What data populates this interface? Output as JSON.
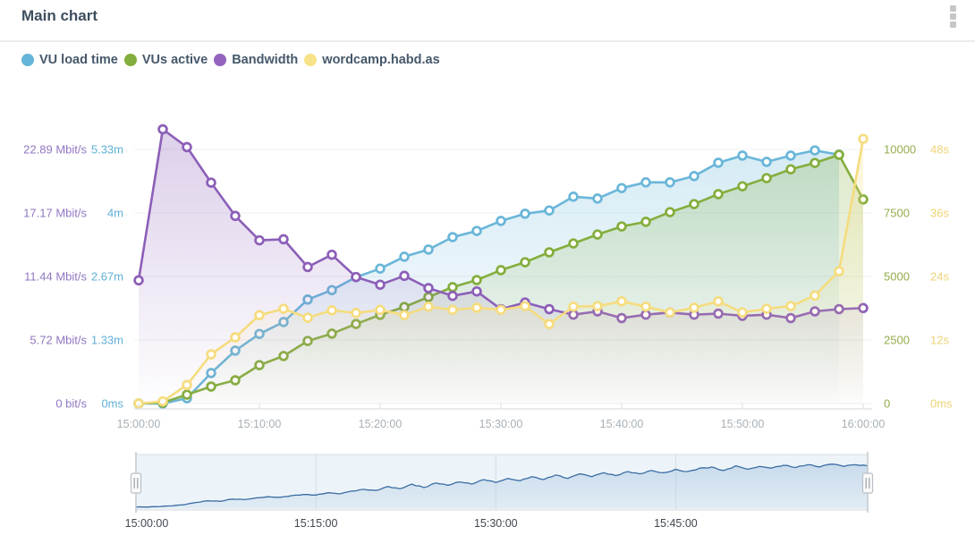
{
  "header": {
    "title": "Main chart"
  },
  "legend": [
    {
      "label": "VU load time",
      "color": "#66b5d8"
    },
    {
      "label": "VUs active",
      "color": "#84ae3d"
    },
    {
      "label": "Bandwidth",
      "color": "#9264bd"
    },
    {
      "label": "wordcamp.habd.as",
      "color": "#f8e289"
    }
  ],
  "chart_data": {
    "type": "line",
    "title": "Main chart",
    "x_ticks": [
      "15:00:00",
      "15:10:00",
      "15:20:00",
      "15:30:00",
      "15:40:00",
      "15:50:00",
      "16:00:00"
    ],
    "axes": {
      "bandwidth": {
        "labels": [
          "22.89 Mbit/s",
          "17.17 Mbit/s",
          "11.44 Mbit/s",
          "5.72 Mbit/s",
          "0 bit/s"
        ],
        "color": "#9177c2",
        "max": 22.89,
        "unit": "Mbit/s"
      },
      "vu_load_time": {
        "labels": [
          "5.33m",
          "4m",
          "2.67m",
          "1.33m",
          "0ms"
        ],
        "color": "#5fb0d6",
        "max": 5.33,
        "unit": "minutes"
      },
      "vus_active": {
        "labels": [
          "10000",
          "7500",
          "5000",
          "2500",
          "0"
        ],
        "color": "#93ad4c",
        "max": 10000,
        "unit": "VUs"
      },
      "response_time": {
        "labels": [
          "48s",
          "36s",
          "24s",
          "12s",
          "0ms"
        ],
        "color": "#eed477",
        "max": 48,
        "unit": "seconds"
      }
    },
    "series": [
      {
        "name": "VU load time",
        "axis": "vu_load_time",
        "color": "#6ab6d9",
        "fill": true,
        "x": [
          0,
          2,
          4,
          6,
          8,
          10,
          12,
          14,
          16,
          18,
          20,
          22,
          24,
          26,
          28,
          30,
          32,
          34,
          36,
          38,
          40,
          42,
          44,
          46,
          48,
          50,
          52,
          54,
          56,
          58
        ],
        "values": [
          0,
          0,
          0.11,
          0.64,
          1.11,
          1.46,
          1.71,
          2.18,
          2.38,
          2.65,
          2.83,
          3.08,
          3.23,
          3.49,
          3.62,
          3.83,
          3.98,
          4.05,
          4.34,
          4.3,
          4.52,
          4.64,
          4.64,
          4.77,
          5.05,
          5.2,
          5.07,
          5.2,
          5.31,
          5.22
        ]
      },
      {
        "name": "VUs active",
        "axis": "vus_active",
        "color": "#84ae3d",
        "fill": true,
        "x": [
          0,
          2,
          4,
          6,
          8,
          10,
          12,
          14,
          16,
          18,
          20,
          22,
          24,
          26,
          28,
          30,
          32,
          34,
          36,
          38,
          40,
          42,
          44,
          46,
          48,
          50,
          52,
          54,
          56,
          58,
          60
        ],
        "values": [
          0,
          35,
          350,
          670,
          915,
          1510,
          1870,
          2460,
          2750,
          3130,
          3490,
          3800,
          4190,
          4580,
          4860,
          5250,
          5560,
          5950,
          6300,
          6650,
          6970,
          7150,
          7530,
          7850,
          8240,
          8550,
          8870,
          9220,
          9470,
          9790,
          8030
        ]
      },
      {
        "name": "Bandwidth",
        "axis": "bandwidth",
        "color": "#8c5fb8",
        "fill": true,
        "x": [
          0,
          2,
          4,
          6,
          8,
          10,
          12,
          14,
          16,
          18,
          20,
          22,
          24,
          26,
          28,
          30,
          32,
          34,
          36,
          38,
          40,
          42,
          44,
          46,
          48,
          50,
          52,
          54,
          56,
          58,
          60
        ],
        "values": [
          11.1,
          24.7,
          23.1,
          19.9,
          16.9,
          14.7,
          14.8,
          12.3,
          13.4,
          11.4,
          10.7,
          11.5,
          10.4,
          9.7,
          10.1,
          8.5,
          9.1,
          8.5,
          8.0,
          8.3,
          7.7,
          8.0,
          8.2,
          8.0,
          8.1,
          7.9,
          8.0,
          7.7,
          8.3,
          8.5,
          8.6
        ]
      },
      {
        "name": "wordcamp.habd.as",
        "axis": "response_time",
        "color": "#f5dc7e",
        "fill": true,
        "x": [
          0,
          2,
          4,
          6,
          8,
          10,
          12,
          14,
          16,
          18,
          20,
          22,
          24,
          26,
          28,
          30,
          32,
          34,
          36,
          38,
          40,
          42,
          44,
          46,
          48,
          50,
          52,
          54,
          56,
          58,
          60
        ],
        "values": [
          0,
          0.4,
          3.5,
          9.3,
          12.5,
          16.7,
          17.9,
          16.2,
          17.6,
          17.1,
          17.7,
          16.7,
          18.3,
          17.7,
          18.1,
          17.7,
          18.4,
          15.0,
          18.3,
          18.4,
          19.3,
          18.3,
          17.2,
          18.1,
          19.3,
          17.2,
          17.9,
          18.4,
          20.4,
          25.0,
          50.0
        ]
      }
    ],
    "navigator": {
      "x_ticks": [
        "15:00:00",
        "15:15:00",
        "15:30:00",
        "15:45:00"
      ],
      "line_color": "#3a6da3",
      "values": [
        0.02,
        0.02,
        0.03,
        0.04,
        0.06,
        0.1,
        0.13,
        0.12,
        0.16,
        0.15,
        0.18,
        0.2,
        0.19,
        0.22,
        0.24,
        0.23,
        0.27,
        0.25,
        0.3,
        0.33,
        0.31,
        0.38,
        0.34,
        0.42,
        0.36,
        0.44,
        0.4,
        0.46,
        0.42,
        0.5,
        0.45,
        0.52,
        0.48,
        0.55,
        0.5,
        0.58,
        0.52,
        0.6,
        0.55,
        0.62,
        0.57,
        0.64,
        0.6,
        0.66,
        0.62,
        0.68,
        0.64,
        0.7,
        0.72,
        0.66,
        0.74,
        0.68,
        0.73,
        0.7,
        0.75,
        0.71,
        0.76,
        0.72,
        0.77,
        0.73,
        0.76,
        0.74
      ]
    }
  }
}
